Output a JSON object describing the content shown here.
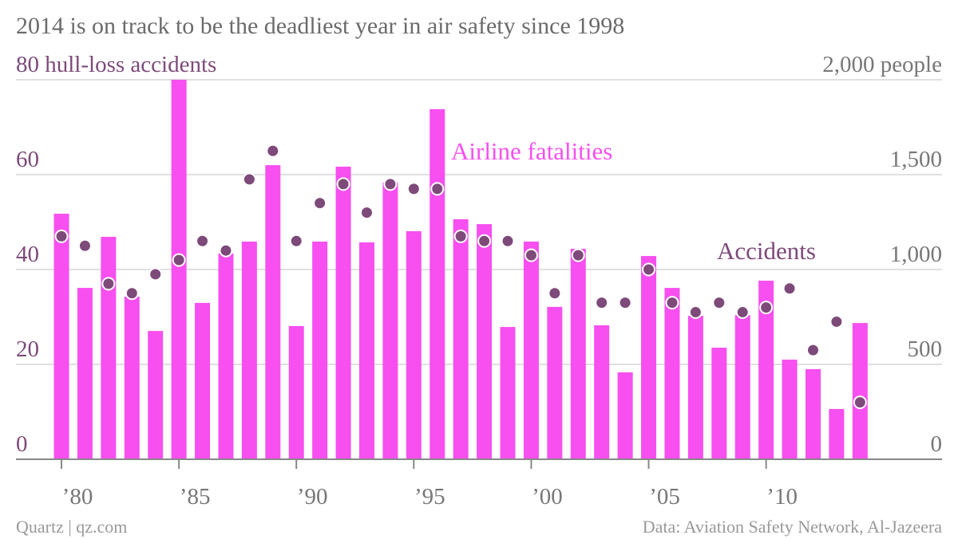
{
  "chart_data": {
    "type": "combo",
    "title": "2014 is on track to be the deadliest year in air safety since 1998",
    "source_left": "Quartz | qz.com",
    "source_right": "Data: Aviation Safety Network, Al-Jazeera",
    "x": [
      1980,
      1981,
      1982,
      1983,
      1984,
      1985,
      1986,
      1987,
      1988,
      1989,
      1990,
      1991,
      1992,
      1993,
      1994,
      1995,
      1996,
      1997,
      1998,
      1999,
      2000,
      2001,
      2002,
      2003,
      2004,
      2005,
      2006,
      2007,
      2008,
      2009,
      2010,
      2011,
      2012,
      2013,
      2014
    ],
    "xlim": [
      1979,
      2018
    ],
    "xticks": [
      {
        "value": 1980,
        "label": "’80"
      },
      {
        "value": 1985,
        "label": "’85"
      },
      {
        "value": 1990,
        "label": "’90"
      },
      {
        "value": 1995,
        "label": "’95"
      },
      {
        "value": 2000,
        "label": "’00"
      },
      {
        "value": 2005,
        "label": "’05"
      },
      {
        "value": 2010,
        "label": "’10"
      }
    ],
    "ylim": [
      0,
      80
    ],
    "yticks": [
      0,
      20,
      40,
      60,
      {
        "value": 80,
        "label": "80 hull-loss accidents"
      }
    ],
    "y2lim": [
      0,
      2000
    ],
    "y2ticks": [
      0,
      500,
      {
        "value": 1000,
        "label": "1,000"
      },
      {
        "value": 1500,
        "label": "1,500"
      },
      {
        "value": 2000,
        "label": "2,000 people"
      }
    ],
    "grid": true,
    "series": [
      {
        "name": "Airline fatalities",
        "type": "bar",
        "axis": "y2",
        "color": "#f74ff0",
        "values": [
          1294,
          903,
          1172,
          857,
          676,
          2000,
          824,
          1084,
          1147,
          1550,
          702,
          1147,
          1542,
          1143,
          1458,
          1202,
          1845,
          1265,
          1239,
          697,
          1147,
          803,
          1109,
          706,
          458,
          1071,
          903,
          756,
          588,
          760,
          941,
          525,
          475,
          265,
          718
        ]
      },
      {
        "name": "Accidents",
        "type": "scatter",
        "axis": "y",
        "color": "#7d4a7a",
        "values": [
          47,
          45,
          37,
          35,
          39,
          42,
          46,
          44,
          59,
          65,
          46,
          54,
          58,
          52,
          58,
          57,
          57,
          47,
          46,
          46,
          43,
          35,
          43,
          33,
          33,
          40,
          33,
          31,
          33,
          31,
          32,
          36,
          23,
          29,
          12
        ]
      }
    ]
  }
}
